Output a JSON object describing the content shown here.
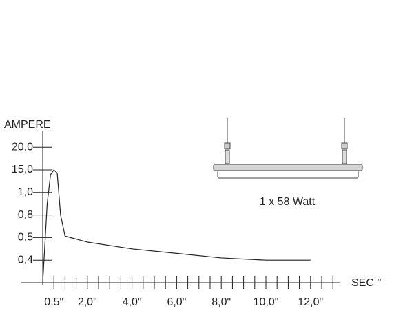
{
  "chart_data": {
    "type": "line",
    "y_label": "AMPERE",
    "x_label": "SEC ''",
    "annotation": "1 x 58 Watt",
    "x": [
      0,
      0.2,
      0.35,
      0.5,
      0.65,
      0.8,
      1.0,
      2,
      4,
      6,
      8,
      10,
      12
    ],
    "series": [
      {
        "color": "#222222",
        "values": [
          0,
          0.9,
          12,
          15,
          13,
          0.8,
          0.52,
          0.48,
          0.45,
          0.43,
          0.41,
          0.4,
          0.4
        ]
      }
    ],
    "xlim": [
      0,
      13.3
    ],
    "xticks": [
      {
        "value": 0.5,
        "label": "0,5\""
      },
      {
        "value": 2,
        "label": "2,0\""
      },
      {
        "value": 4,
        "label": "4,0\""
      },
      {
        "value": 6,
        "label": "6,0\""
      },
      {
        "value": 8,
        "label": "8,0\""
      },
      {
        "value": 10,
        "label": "10,0\""
      },
      {
        "value": 12,
        "label": "12,0\""
      }
    ],
    "xminor_ticks": [
      0.5,
      1,
      1.5,
      2,
      2.5,
      3,
      3.5,
      4,
      4.5,
      5,
      5.5,
      6,
      6.5,
      7,
      7.5,
      8,
      8.5,
      9,
      9.5,
      10,
      10.5,
      11,
      11.5,
      12,
      12.5,
      13
    ],
    "ylim": [
      0,
      20
    ],
    "yticks": [
      {
        "value": 0.4,
        "label": "0,4"
      },
      {
        "value": 0.5,
        "label": "0,5"
      },
      {
        "value": 0.8,
        "label": "0,8"
      },
      {
        "value": 1,
        "label": "1,0"
      },
      {
        "value": 15,
        "label": "15,0"
      },
      {
        "value": 20,
        "label": "20,0"
      }
    ]
  }
}
